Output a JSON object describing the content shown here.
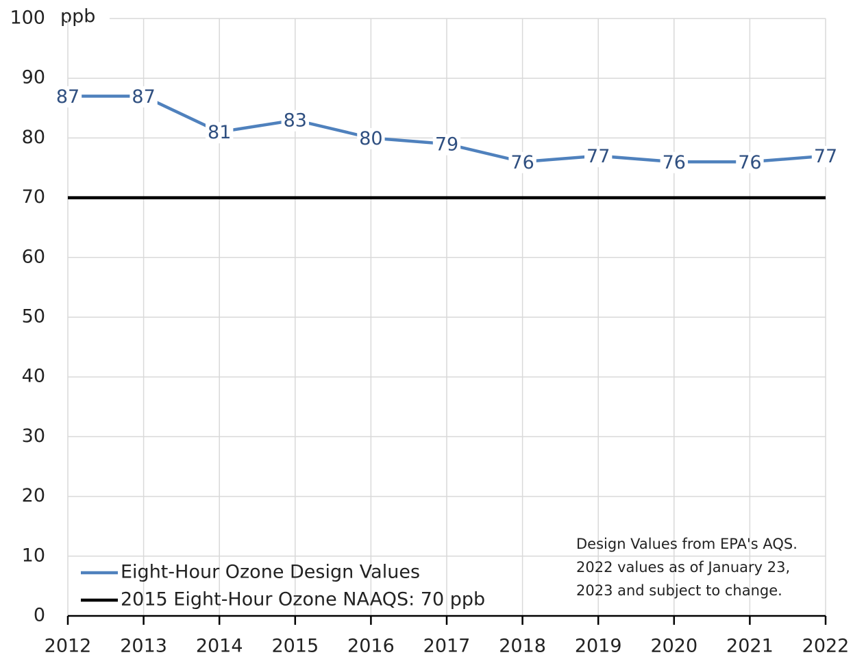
{
  "chart_data": {
    "type": "line",
    "ylabel": "ppb",
    "x": [
      2012,
      2013,
      2014,
      2015,
      2016,
      2017,
      2018,
      2019,
      2020,
      2021,
      2022
    ],
    "series": [
      {
        "name": "Eight-Hour Ozone Design Values",
        "color": "#4f81bd",
        "data_labels": true,
        "values": [
          87,
          87,
          81,
          83,
          80,
          79,
          76,
          77,
          76,
          76,
          77
        ]
      },
      {
        "name": "2015 Eight-Hour Ozone NAAQS: 70 ppb",
        "color": "#000000",
        "data_labels": false,
        "values": [
          70,
          70,
          70,
          70,
          70,
          70,
          70,
          70,
          70,
          70,
          70
        ]
      }
    ],
    "xlim": [
      2012,
      2022
    ],
    "xticks": [
      2012,
      2013,
      2014,
      2015,
      2016,
      2017,
      2018,
      2019,
      2020,
      2021,
      2022
    ],
    "ylim": [
      0,
      100
    ],
    "yticks": [
      0,
      10,
      20,
      30,
      40,
      50,
      60,
      70,
      80,
      90,
      100
    ],
    "grid": true,
    "legend": "lower left",
    "annotation": [
      "Design Values from EPA's AQS.",
      "2022 values as of January 23,",
      "2023 and subject to change."
    ]
  }
}
